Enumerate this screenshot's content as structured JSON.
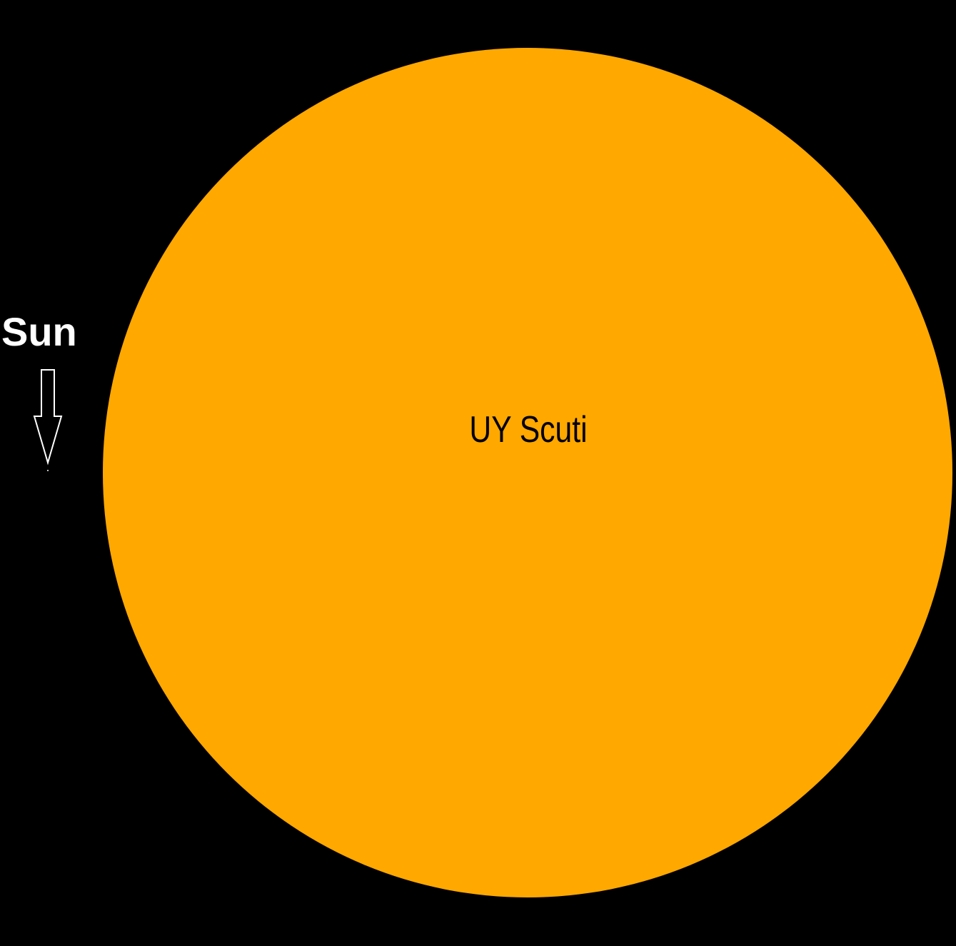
{
  "labels": {
    "sun": "Sun",
    "large_star": "UY Scuti"
  },
  "colors": {
    "background": "#000000",
    "large_star_fill": "#FFA800",
    "arrow_stroke": "#ffffff",
    "arrow_fill": "#000000",
    "sun_label": "#ffffff",
    "star_label": "#000000"
  },
  "icons": {
    "pointer": "down-arrow-icon"
  }
}
